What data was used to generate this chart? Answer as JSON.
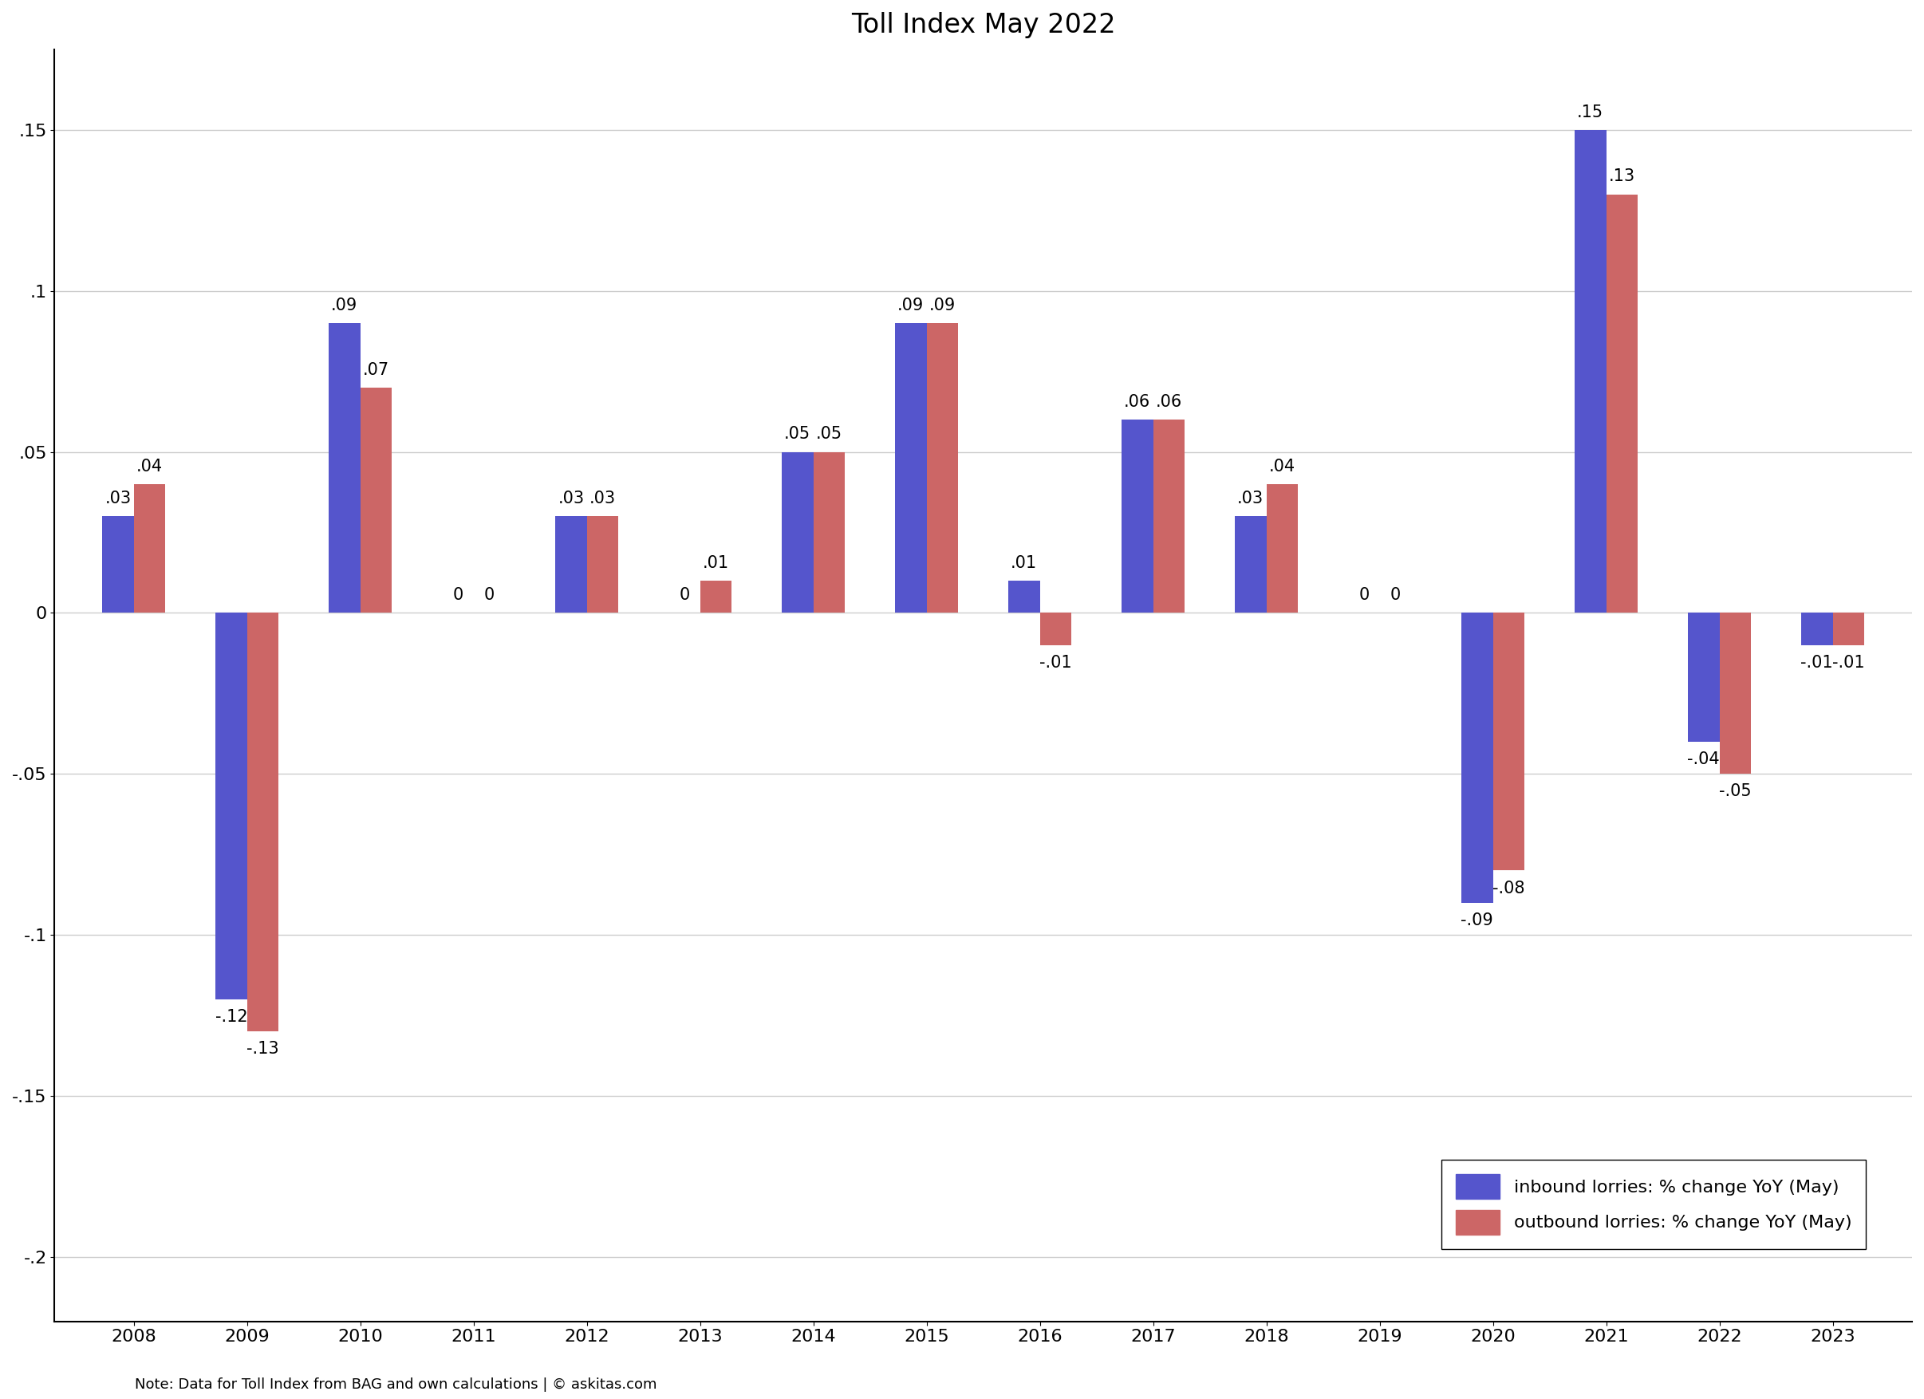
{
  "title": "Toll Index May 2022",
  "years": [
    2008,
    2009,
    2010,
    2011,
    2012,
    2013,
    2014,
    2015,
    2016,
    2017,
    2018,
    2019,
    2020,
    2021,
    2022,
    2023
  ],
  "inbound": [
    0.03,
    -0.12,
    0.09,
    0.0,
    0.03,
    0.0,
    0.05,
    0.09,
    0.01,
    0.06,
    0.03,
    0.0,
    -0.09,
    0.15,
    -0.04,
    -0.01
  ],
  "outbound": [
    0.04,
    -0.13,
    0.07,
    0.0,
    0.03,
    0.01,
    0.05,
    0.09,
    -0.01,
    0.06,
    0.04,
    0.0,
    -0.08,
    0.13,
    -0.05,
    -0.01
  ],
  "inbound_color": "#5555CC",
  "outbound_color": "#CC6666",
  "ylim": [
    -0.22,
    0.175
  ],
  "yticks": [
    -0.2,
    -0.15,
    -0.1,
    -0.05,
    0,
    0.05,
    0.1,
    0.15
  ],
  "ytick_labels": [
    "-.2",
    "-.15",
    "-.1",
    "-.05",
    "0",
    ".05",
    ".1",
    ".15"
  ],
  "bar_width": 0.28,
  "legend_inbound": "inbound lorries: % change YoY (May)",
  "legend_outbound": "outbound lorries: % change YoY (May)",
  "footnote": "Note: Data for Toll Index from BAG and own calculations | © askitas.com",
  "background_color": "#ffffff",
  "grid_color": "#cccccc",
  "label_fontsize": 15,
  "tick_fontsize": 16,
  "title_fontsize": 24,
  "legend_fontsize": 16
}
